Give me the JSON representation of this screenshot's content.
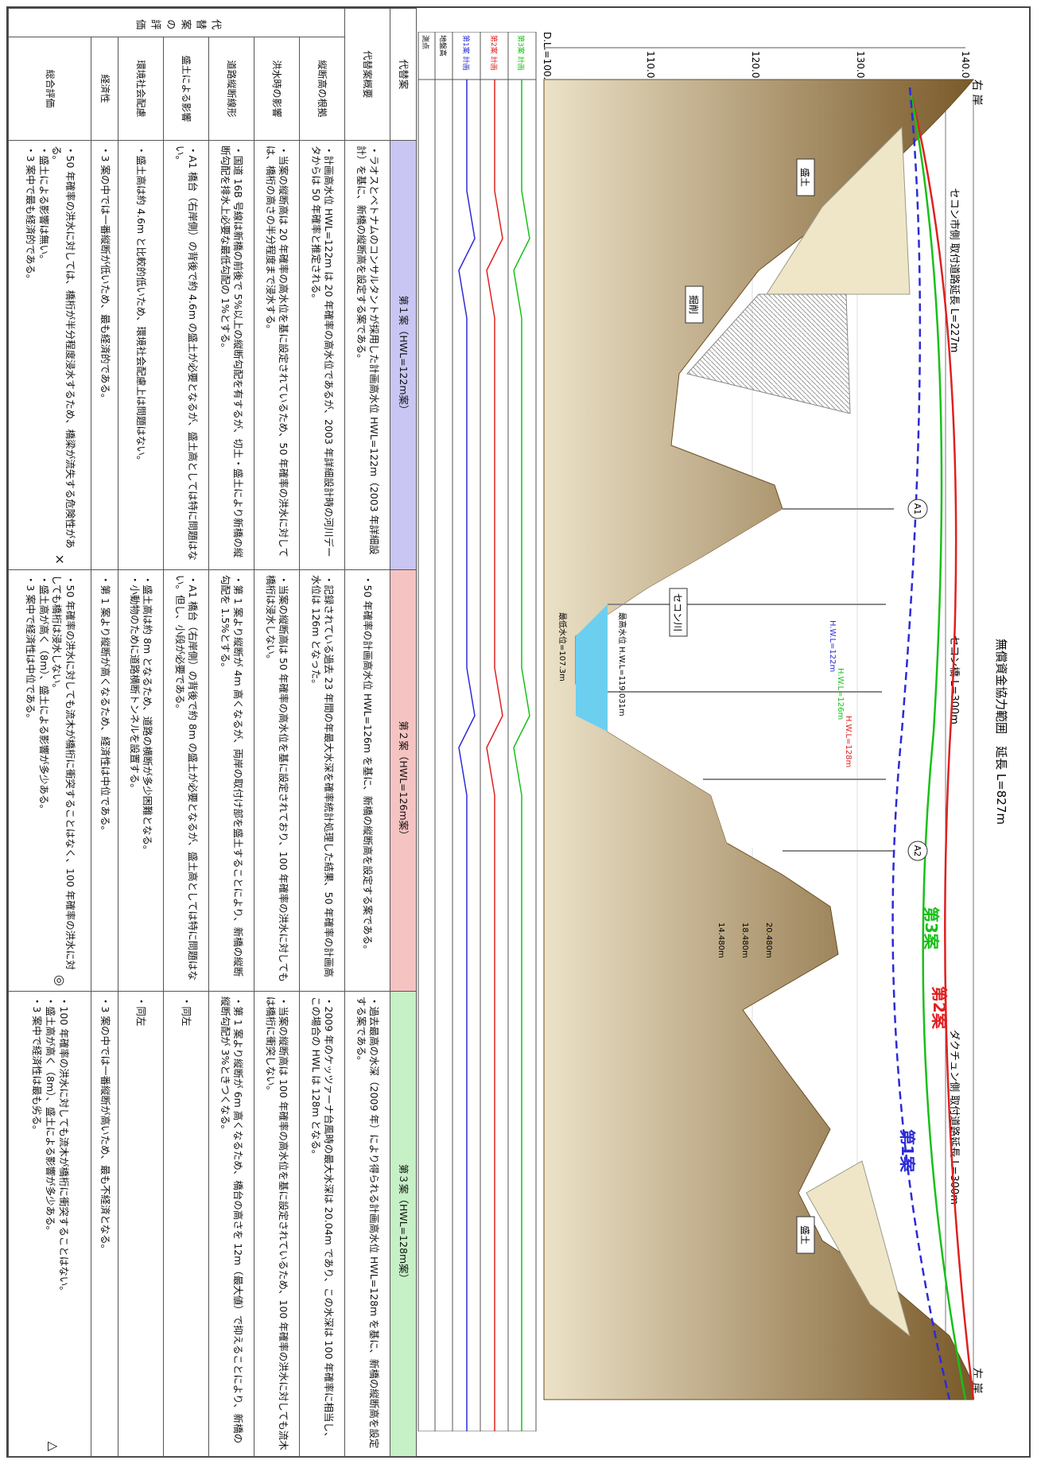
{
  "title": "無償資金協力範囲　延長 L=827m",
  "bank_left": "右 岸",
  "bank_right": "左 岸",
  "ranges": {
    "left_approach": "セコン市側 取付道路延長 L=227m",
    "bridge": "セコン橋 L=300m",
    "right_approach": "ダクチュン側 取付道路延長 L=300m"
  },
  "elevations": [
    "140.0",
    "130.0",
    "120.0",
    "110.0",
    "D.L.=100.0"
  ],
  "labels": {
    "abutment_a1": "A1",
    "abutment_a2": "A2",
    "river": "セコン川",
    "embankment_left": "盛土",
    "embankment_right": "盛土",
    "cut": "掘削",
    "case1": "第1案",
    "case2": "第2案",
    "case3": "第3案",
    "hwl_case1": "H.W.L=122m",
    "hwl_case2": "H.W.L=126m",
    "hwl_case3": "H.W.L=128m",
    "record_wl": "最高水位 H.W.L=119.031m",
    "low_wl": "最低水位=107.3m",
    "dim1": "20.480m",
    "dim2": "18.480m",
    "dim3": "14.480m"
  },
  "profile_rows": [
    "第3案 計画",
    "第2案 計画",
    "第1案 計画",
    "地盤高",
    "測点"
  ],
  "table": {
    "headers": {
      "alt": "代替案",
      "c1": "第１案（HWL=122m案）",
      "c2": "第２案（HWL=126m案）",
      "c3": "第３案（HWL=128m案）"
    },
    "section_label": "代替案の評価",
    "rows": [
      {
        "name": "代替案概要",
        "c1": "・ラオスとベトナムのコンサルタントが採用した計画高水位 HWL=122m（2003 年詳細設計）を基に、新橋の縦断高を設定する案である。",
        "c2": "・50 年確率の計画高水位 HWL=126m を基に、新橋の縦断高を設定する案である。",
        "c3": "・過去最高の水深（2009 年）により得られる計画高水位 HWL=128m を基に、新橋の縦断高を設定する案である。"
      },
      {
        "name": "縦断高の根拠",
        "c1": "・計画高水位 HWL=122m は 20 年確率の高水位であるが、2003 年詳細設計時の河川データからは 50 年確率と推定される。",
        "c2": "・記録されている過去 23 年間の年最大水深を確率統計処理した結果、50 年確率の計画高水位は 126m となった。",
        "c3": "・2009 年のケッツァーナ台風時の最大水深は 20.04m であり、この水深は 100 年確率に相当し、この場合の HWL は 128m となる。"
      },
      {
        "name": "洪水時の影響",
        "c1": "・当案の縦断高は 20 年確率の高水位を基に設定されているため、50 年確率の洪水に対しては、橋桁の高さの半分程度まで浸水する。",
        "c2": "・当案の縦断高は 50 年確率の高水位を基に設定されており、100 年確率の洪水に対しても橋桁は浸水しない。",
        "c3": "・当案の縦断高は 100 年確率の高水位を基に設定されているため、100 年確率の洪水に対しても流木は橋桁に衝突しない。"
      },
      {
        "name": "道路縦断線形",
        "c1": "・国道 16B 号線は新橋の前後で 5%以上の縦断勾配を有するが、切土・盛土により新橋の縦断勾配を排水上必要な最低勾配の 1%とする。",
        "c2": "・第 1 案より縦断が 4m 高くなるが、両岸の取付け部を盛土することにより、新橋の縦断勾配を 1.5%とする。",
        "c3": "・第 1 案より縦断が 6m 高くなるため、橋台の高さを 12m（最大値）で抑えることにより、新橋の縦断勾配が 3%ときつくなる。"
      },
      {
        "name": "盛土による影響",
        "c1": "・A1 橋台（右岸側）の背後で約 4.6m の盛土が必要となるが、盛土高としては特に問題はない。",
        "c2": "・A1 橋台（右岸側）の背後で約 8m の盛土が必要となるが、盛土高としては特に問題はない。但し、小段が必要である。",
        "c3": "・同左"
      },
      {
        "name": "環境社会配慮",
        "c1": "・盛土高は約 4.6m と比較的低いため、環境社会配慮上は問題はない。",
        "c2": "・盛土高は約 8m となるため、道路の横断が多少困難となる。\n・小動物のために道路横断トンネルを設置する。",
        "c3": "・同左"
      },
      {
        "name": "経済性",
        "c1": "・3 案の中では一番縦断が低いため、最も経済的である。",
        "c2": "・第 1 案より縦断が高くなるため、経済性は中位である。",
        "c3": "・3 案の中では一番縦断が高いため、最も不経済となる。"
      },
      {
        "name": "総合評価",
        "c1": "・50 年確率の洪水に対しては、橋桁が半分程度浸水するため、橋梁が流失する危険性がある。\n・盛土による影響は無い。\n・3 案中で最も経済的である。",
        "c2": "・50 年確率の洪水に対しても流木が橋桁に衝突することはなく、100 年確率の洪水に対しても橋桁は浸水しない。\n・盛土高が高く（8m）、盛土による影響が多少ある。\n・3 案中で経済性は中位である。",
        "c3": "・100 年確率の洪水に対しても流木が橋桁に衝突することはない。\n・盛土高が高く（8m）、盛土による影響が多少ある。\n・3 案中で経済性は最も劣る。",
        "m1": "×",
        "m2": "◎",
        "m3": "△"
      }
    ]
  },
  "colors": {
    "case1": "#2b2bd6",
    "case2": "#e02020",
    "case3": "#18c018",
    "ground_dark": "#8a6a3a",
    "ground_light": "#e8dcc0",
    "water": "#6ccff0"
  }
}
